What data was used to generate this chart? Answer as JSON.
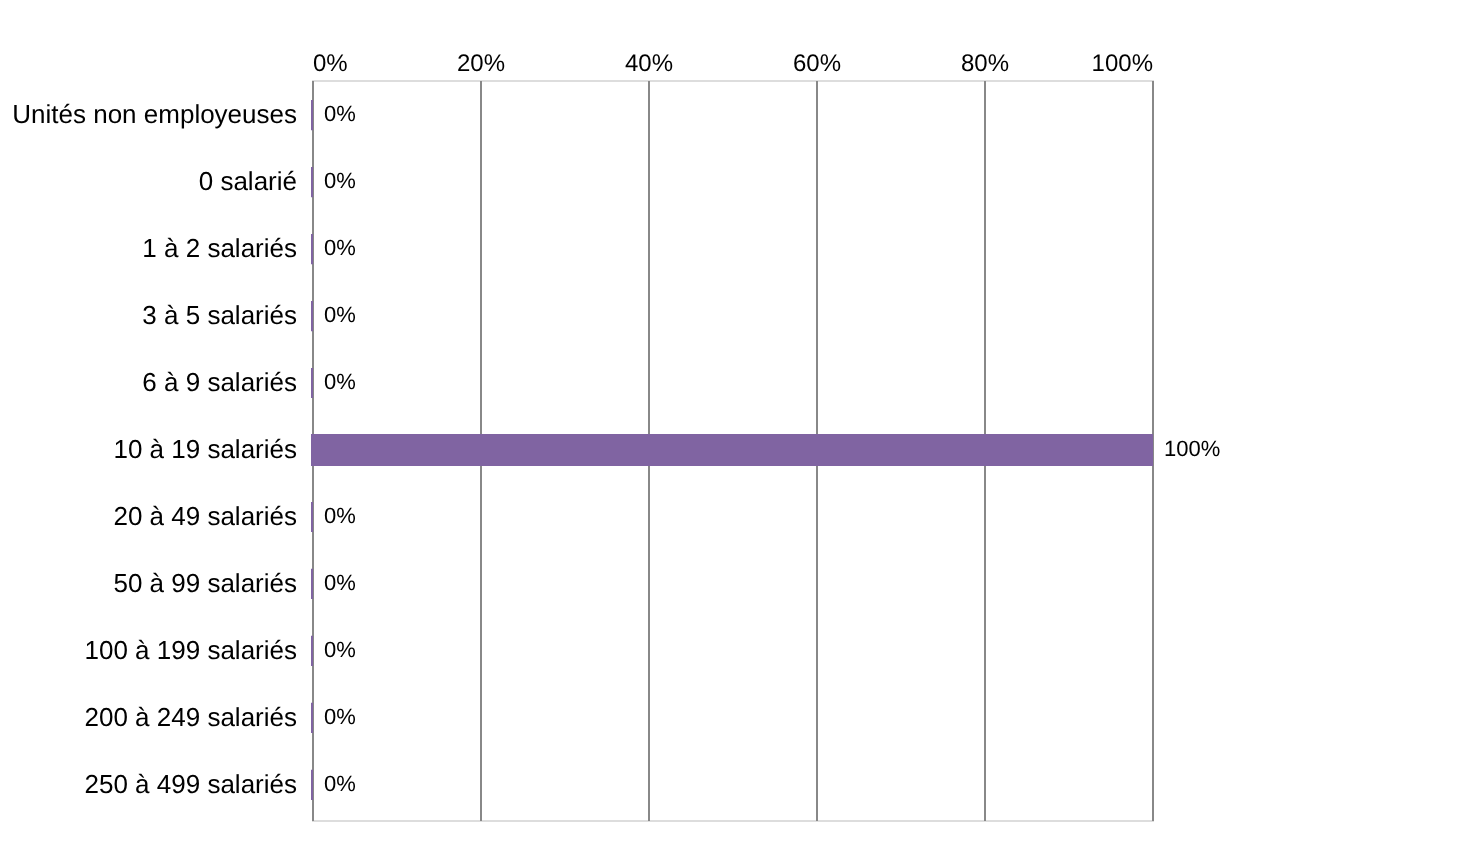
{
  "chart_data": {
    "type": "bar",
    "orientation": "horizontal",
    "categories": [
      "Unités non employeuses",
      "0 salarié",
      "1 à 2 salariés",
      "3 à 5 salariés",
      "6 à 9 salariés",
      "10 à 19 salariés",
      "20 à 49 salariés",
      "50 à 99 salariés",
      "100 à 199 salariés",
      "200 à 249 salariés",
      "250 à 499 salariés"
    ],
    "values": [
      0,
      0,
      0,
      0,
      0,
      100,
      0,
      0,
      0,
      0,
      0
    ],
    "value_labels": [
      "0%",
      "0%",
      "0%",
      "0%",
      "0%",
      "100%",
      "0%",
      "0%",
      "0%",
      "0%",
      "0%"
    ],
    "color": "#8064a2",
    "xlim": [
      0,
      100
    ],
    "xticks": [
      {
        "value": 0,
        "label": "0%"
      },
      {
        "value": 20,
        "label": "20%"
      },
      {
        "value": 40,
        "label": "40%"
      },
      {
        "value": 60,
        "label": "60%"
      },
      {
        "value": 80,
        "label": "80%"
      },
      {
        "value": 100,
        "label": "100%"
      }
    ],
    "grid": "x"
  }
}
